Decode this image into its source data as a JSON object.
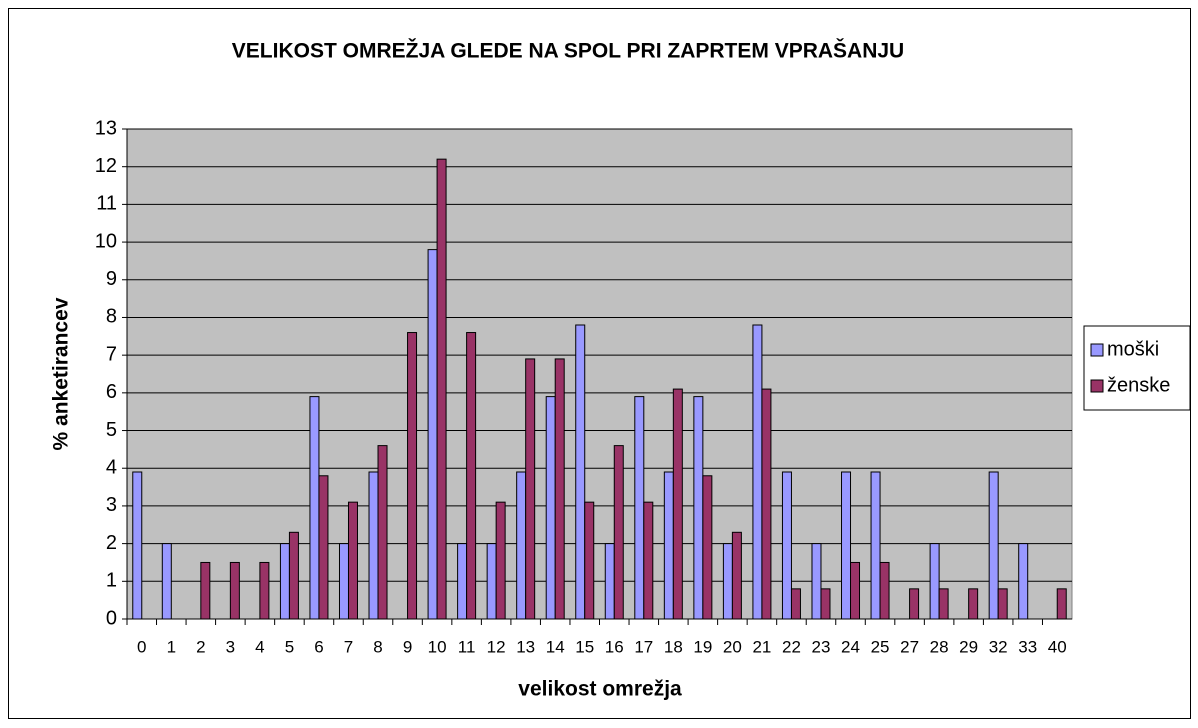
{
  "chart_data": {
    "type": "bar",
    "title": "VELIKOST OMREŽJA GLEDE NA SPOL PRI ZAPRTEM VPRAŠANJU",
    "x_label": "velikost omrežja",
    "y_label": "% anketirancev",
    "categories": [
      "0",
      "1",
      "2",
      "3",
      "4",
      "5",
      "6",
      "7",
      "8",
      "9",
      "10",
      "11",
      "12",
      "13",
      "14",
      "15",
      "16",
      "17",
      "18",
      "19",
      "20",
      "21",
      "22",
      "23",
      "24",
      "25",
      "27",
      "28",
      "29",
      "32",
      "33",
      "40"
    ],
    "series": [
      {
        "name": "moški",
        "color": "#9999ff",
        "values": [
          3.9,
          2.0,
          0,
          0,
          0,
          2.0,
          5.9,
          2.0,
          3.9,
          0,
          9.8,
          2.0,
          2.0,
          3.9,
          5.9,
          7.8,
          2.0,
          5.9,
          3.9,
          5.9,
          2.0,
          7.8,
          3.9,
          2.0,
          3.9,
          3.9,
          0,
          2.0,
          0,
          3.9,
          2.0,
          0
        ]
      },
      {
        "name": "ženske",
        "color": "#993366",
        "values": [
          0,
          0,
          1.5,
          1.5,
          1.5,
          2.3,
          3.8,
          3.1,
          4.6,
          7.6,
          12.2,
          7.6,
          3.1,
          6.9,
          6.9,
          3.1,
          4.6,
          3.1,
          6.1,
          3.8,
          2.3,
          6.1,
          0.8,
          0.8,
          1.5,
          1.5,
          0.8,
          0.8,
          0.8,
          0.8,
          0,
          0.8
        ]
      }
    ],
    "ylim": [
      0,
      13
    ],
    "yticks": [
      0,
      1,
      2,
      3,
      4,
      5,
      6,
      7,
      8,
      9,
      10,
      11,
      12,
      13
    ],
    "grid": true,
    "legend": "right",
    "plot_background": "#c0c0c0"
  }
}
